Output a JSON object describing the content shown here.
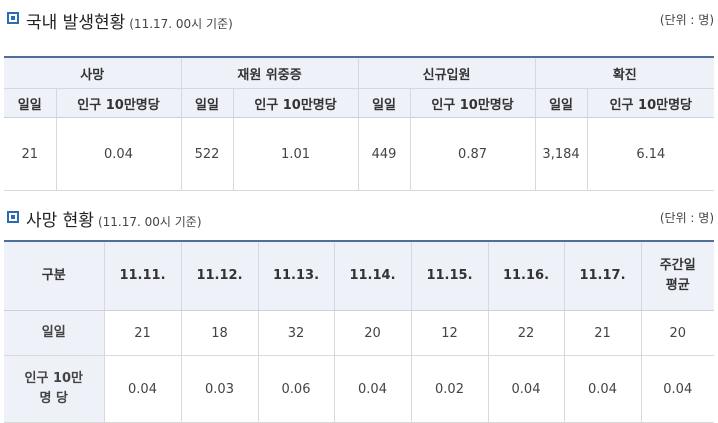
{
  "domestic": {
    "title": "국내 발생현황",
    "subtitle": "(11.17. 00시 기준)",
    "unit": "(단위 : 명)",
    "groups": [
      "사망",
      "재원 위중증",
      "신규입원",
      "확진"
    ],
    "subheaders": [
      "일일",
      "인구 10만명당"
    ],
    "values": [
      {
        "daily": "21",
        "per100k": "0.04"
      },
      {
        "daily": "522",
        "per100k": "1.01"
      },
      {
        "daily": "449",
        "per100k": "0.87"
      },
      {
        "daily": "3,184",
        "per100k": "6.14"
      }
    ]
  },
  "deaths": {
    "title": "사망 현황",
    "subtitle": "(11.17. 00시 기준)",
    "unit": "(단위 : 명)",
    "header_label": "구분",
    "dates": [
      "11.11.",
      "11.12.",
      "11.13.",
      "11.14.",
      "11.15.",
      "11.16.",
      "11.17."
    ],
    "avg_label": "주간일\n평균",
    "rows": [
      {
        "label": "일일",
        "values": [
          "21",
          "18",
          "32",
          "20",
          "12",
          "22",
          "21"
        ],
        "avg": "20"
      },
      {
        "label": "인구 10만\n명 당",
        "values": [
          "0.04",
          "0.03",
          "0.06",
          "0.04",
          "0.02",
          "0.04",
          "0.04"
        ],
        "avg": "0.04"
      }
    ]
  }
}
